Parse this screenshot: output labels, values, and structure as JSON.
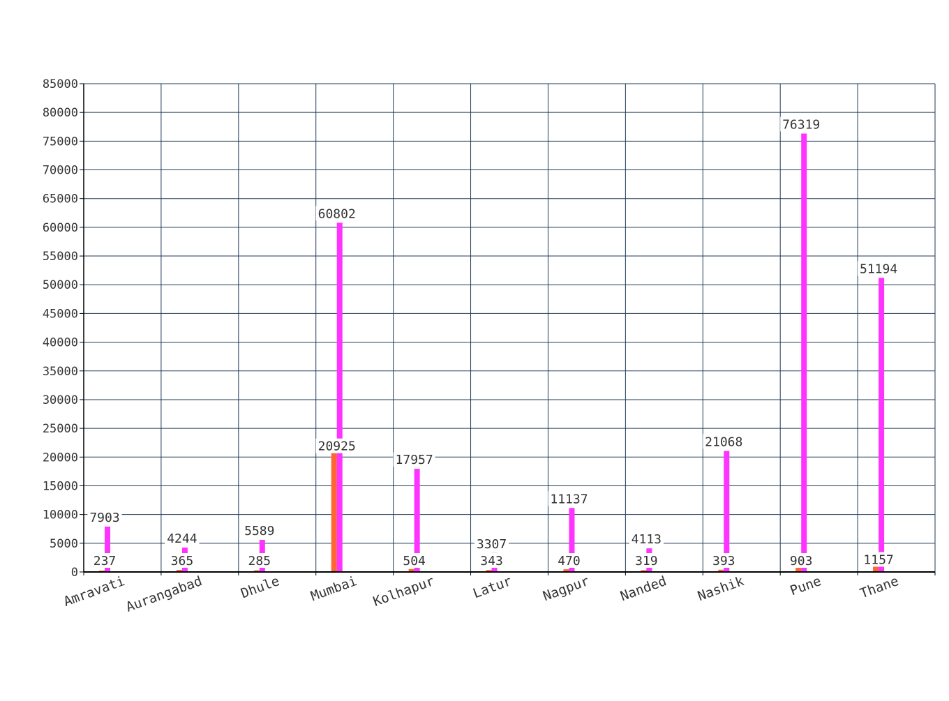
{
  "chart_data": {
    "type": "bar",
    "title": "",
    "xlabel": "",
    "ylabel": "",
    "ylim": [
      0,
      85000
    ],
    "yticks": [
      0,
      5000,
      10000,
      15000,
      20000,
      25000,
      30000,
      35000,
      40000,
      45000,
      50000,
      55000,
      60000,
      65000,
      70000,
      75000,
      80000,
      85000
    ],
    "grid": true,
    "legend": "none",
    "categories": [
      "Amravati",
      "Aurangabad",
      "Dhule",
      "Mumbai",
      "Kolhapur",
      "Latur",
      "Nagpur",
      "Nanded",
      "Nashik",
      "Pune",
      "Thane"
    ],
    "series": [
      {
        "color": "#ff6633",
        "values": [
          237,
          365,
          285,
          20925,
          504,
          343,
          470,
          319,
          393,
          903,
          1157
        ]
      },
      {
        "color": "#ff33ff",
        "values": [
          7903,
          4244,
          5589,
          60802,
          17957,
          3307,
          11137,
          4113,
          21068,
          76319,
          51194
        ]
      }
    ],
    "colors": {
      "grid": "#1f3a5a",
      "axis": "#000000",
      "text": "#333333"
    }
  }
}
